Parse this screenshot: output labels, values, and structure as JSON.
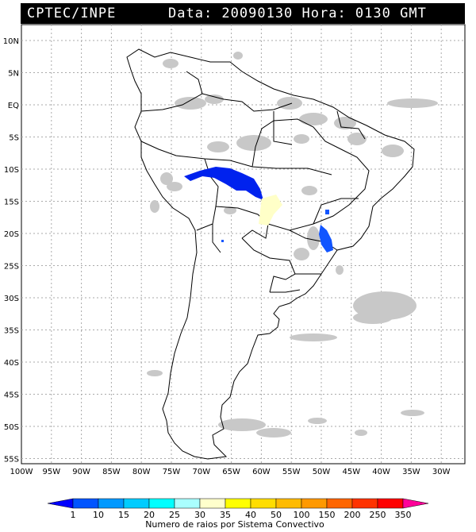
{
  "header": {
    "org": "CPTEC/INPE",
    "datetime": "Data: 20090130 Hora: 0130 GMT"
  },
  "map": {
    "lat_labels": [
      "10N",
      "5N",
      "EQ",
      "5S",
      "10S",
      "15S",
      "20S",
      "25S",
      "30S",
      "35S",
      "40S",
      "45S",
      "50S",
      "55S"
    ],
    "lon_labels": [
      "100W",
      "95W",
      "90W",
      "85W",
      "80W",
      "75W",
      "70W",
      "65W",
      "60W",
      "55W",
      "50W",
      "45W",
      "40W",
      "35W",
      "30W"
    ],
    "cloud_color": "#c8c8c8",
    "lightning_system_color": "#0022ee",
    "yellow_system_color": "#ffffc8"
  },
  "legend": {
    "caption": "Numero de raios por Sistema Convectivo",
    "ticks": [
      "1",
      "10",
      "15",
      "20",
      "25",
      "30",
      "35",
      "40",
      "50",
      "100",
      "150",
      "200",
      "250",
      "350"
    ],
    "colors": [
      "#0000ff",
      "#0055ff",
      "#0099ff",
      "#00ccff",
      "#00ffff",
      "#aaffff",
      "#ffffcc",
      "#ffff00",
      "#ffdd00",
      "#ffbb00",
      "#ff9900",
      "#ff6600",
      "#ff3300",
      "#ff0000",
      "#ff0099"
    ]
  }
}
